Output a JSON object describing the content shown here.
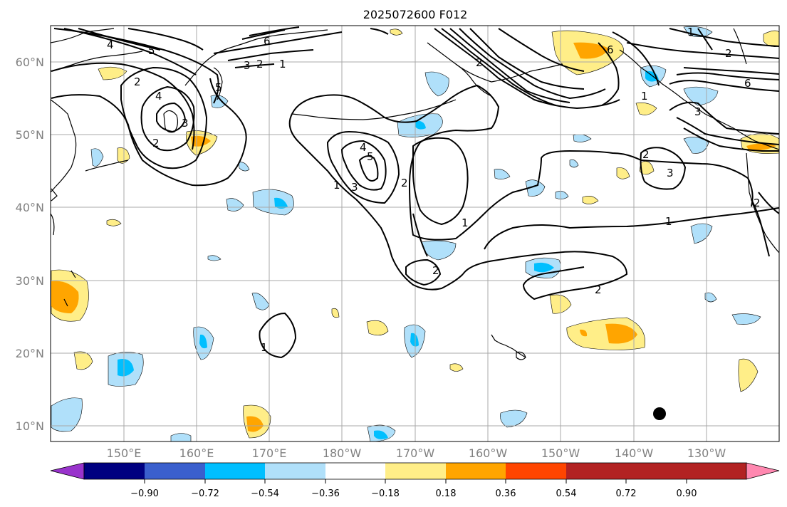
{
  "title": "2025072600 F012",
  "map": {
    "lat_labels": [
      "60°N",
      "50°N",
      "40°N",
      "30°N",
      "20°N",
      "10°N"
    ],
    "lon_labels": [
      "150°E",
      "160°E",
      "170°E",
      "180°W",
      "170°W",
      "160°W",
      "150°W",
      "140°W",
      "130°W"
    ],
    "contour_labels": [
      "4",
      "5",
      "6",
      "2",
      "3",
      "2",
      "1",
      "5",
      "4",
      "3",
      "2",
      "4",
      "5",
      "3",
      "1",
      "2",
      "1",
      "2",
      "1",
      "1",
      "2",
      "2",
      "2",
      "3",
      "6",
      "1",
      "1",
      "2",
      "6",
      "2",
      "3"
    ]
  },
  "colorbar": {
    "colors": [
      "#9933cc",
      "#000080",
      "#3a5fcd",
      "#00bfff",
      "#b0e0fa",
      "#ffffff",
      "#ffee88",
      "#ffa500",
      "#ff4500",
      "#b22222",
      "#ff88b0"
    ],
    "tick_labels": [
      "−0.90",
      "−0.72",
      "−0.54",
      "−0.36",
      "−0.18",
      "0.18",
      "0.36",
      "0.54",
      "0.72",
      "0.90"
    ]
  }
}
